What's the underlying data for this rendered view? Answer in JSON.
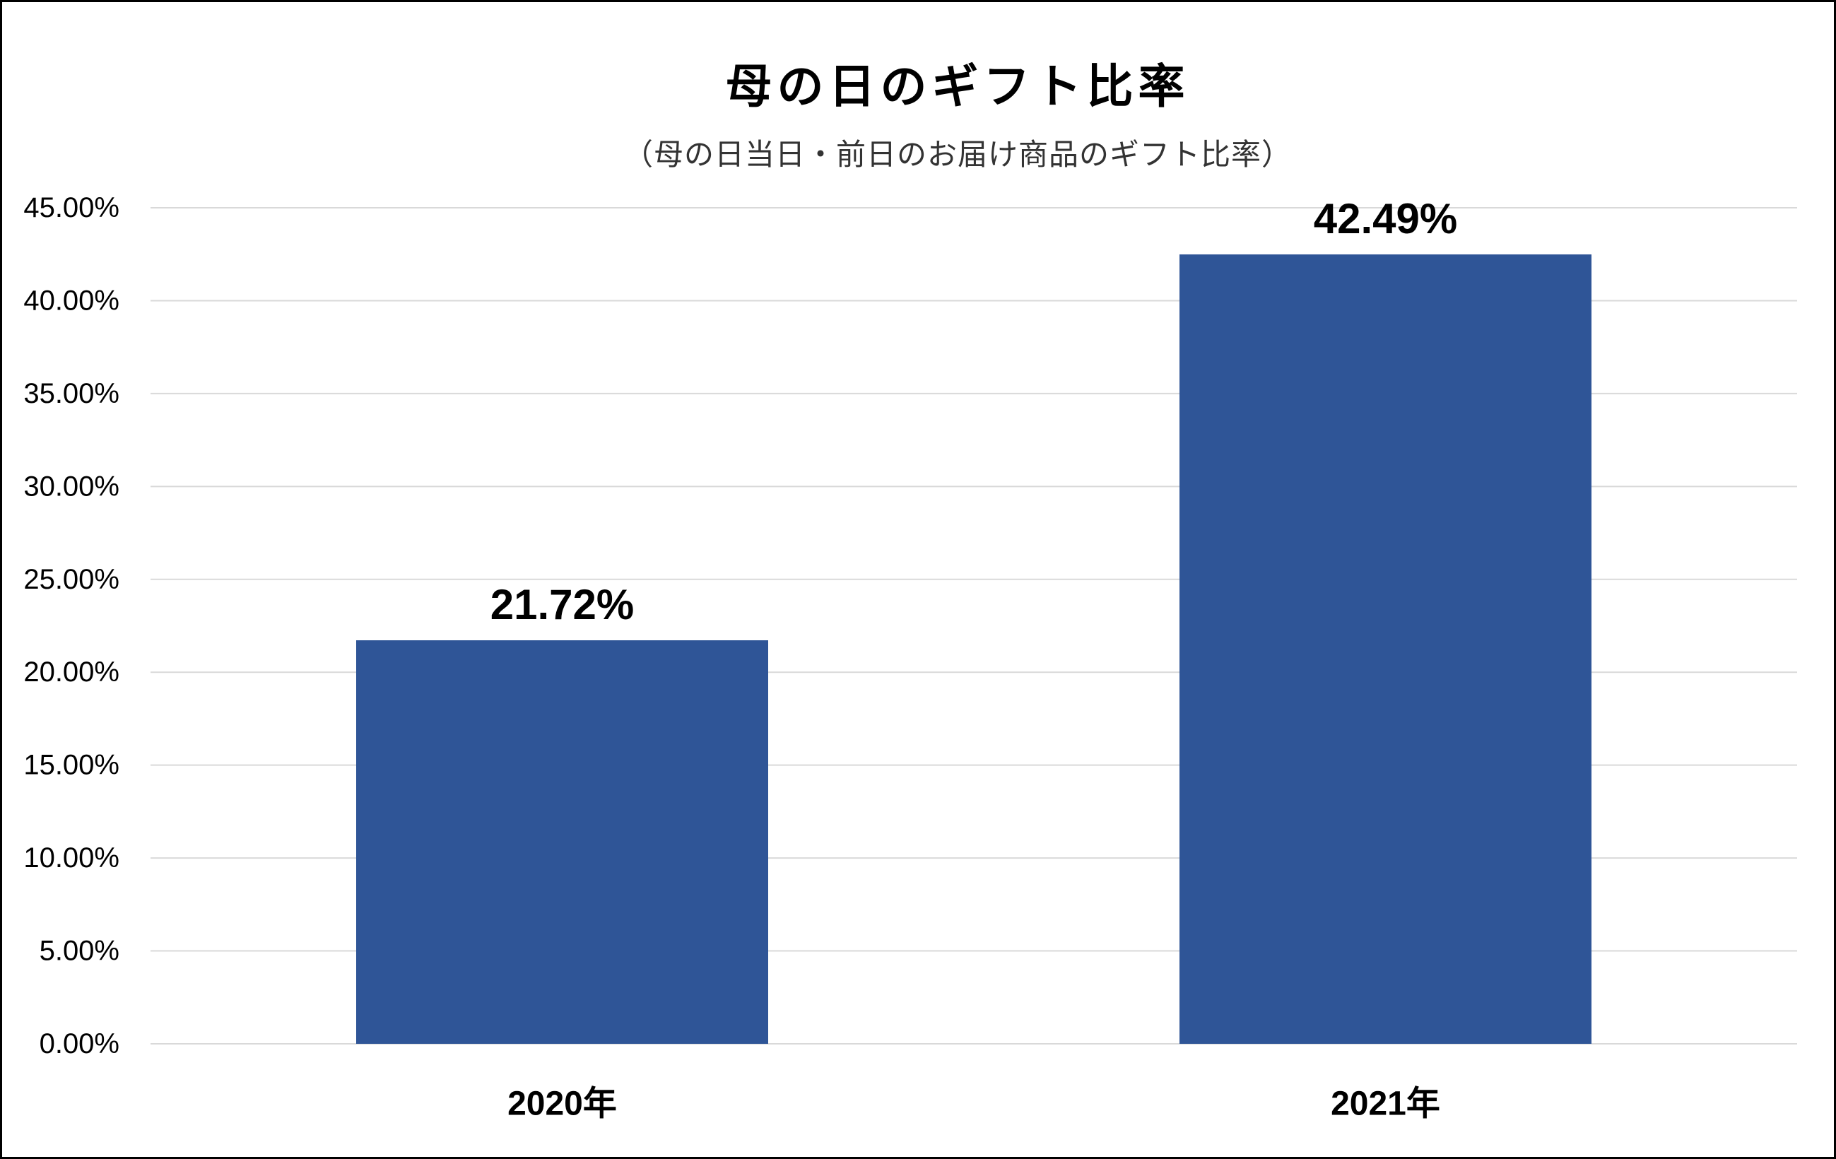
{
  "chart_data": {
    "type": "bar",
    "title": "母の日のギフト比率",
    "subtitle": "（母の日当日・前日のお届け商品のギフト比率）",
    "categories": [
      "2020年",
      "2021年"
    ],
    "values": [
      21.72,
      42.49
    ],
    "data_labels": [
      "21.72%",
      "42.49%"
    ],
    "xlabel": "",
    "ylabel": "",
    "ylim": [
      0,
      45
    ],
    "yticks": [
      0,
      5,
      10,
      15,
      20,
      25,
      30,
      35,
      40,
      45
    ],
    "ytick_labels": [
      "0.00%",
      "5.00%",
      "10.00%",
      "15.00%",
      "20.00%",
      "25.00%",
      "30.00%",
      "35.00%",
      "40.00%",
      "45.00%"
    ],
    "grid": true,
    "bar_color": "#2F5597",
    "grid_color": "#D9D9D9"
  }
}
